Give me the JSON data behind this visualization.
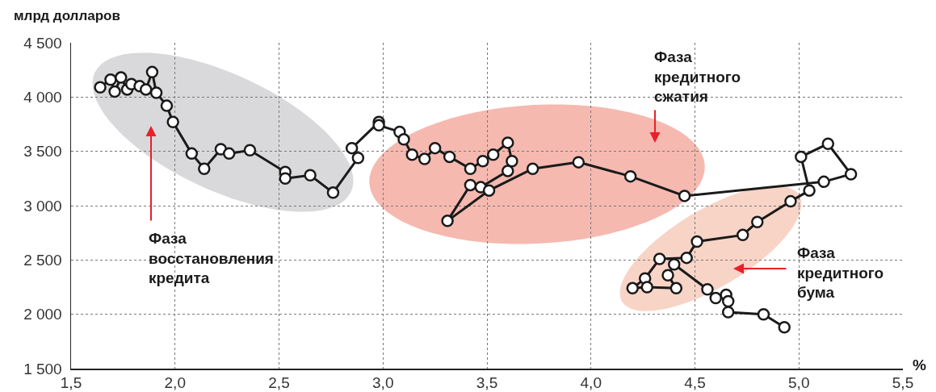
{
  "chart_data": {
    "type": "line",
    "ylabel": "млрд долларов",
    "xlabel": "%",
    "x": [
      1.64,
      1.69,
      1.71,
      1.74,
      1.77,
      1.79,
      1.83,
      1.86,
      1.89,
      1.91,
      1.96,
      1.99,
      2.08,
      2.14,
      2.22,
      2.26,
      2.36,
      2.53,
      2.53,
      2.65,
      2.76,
      2.88,
      2.85,
      2.98,
      2.98,
      3.08,
      3.1,
      3.14,
      3.2,
      3.25,
      3.32,
      3.42,
      3.48,
      3.53,
      3.6,
      3.62,
      3.6,
      3.47,
      3.42,
      3.31,
      3.51,
      3.72,
      3.94,
      4.19,
      4.45,
      5.12,
      5.25,
      5.14,
      5.01,
      5.05,
      4.96,
      4.8,
      4.73,
      4.51,
      4.46,
      4.33,
      4.26,
      4.2,
      4.27,
      4.41,
      4.37,
      4.4,
      4.56,
      4.6,
      4.65,
      4.66,
      4.66,
      4.83,
      4.93
    ],
    "series": [
      {
        "color": "#1a1a1a",
        "values": [
          4090,
          4160,
          4050,
          4180,
          4070,
          4120,
          4100,
          4070,
          4230,
          4040,
          3920,
          3770,
          3480,
          3340,
          3520,
          3480,
          3510,
          3310,
          3250,
          3280,
          3120,
          3440,
          3530,
          3770,
          3740,
          3680,
          3610,
          3470,
          3430,
          3530,
          3450,
          3340,
          3410,
          3470,
          3580,
          3410,
          3320,
          3170,
          3190,
          2860,
          3140,
          3340,
          3400,
          3270,
          3090,
          3220,
          3290,
          3570,
          3450,
          3140,
          3040,
          2850,
          2730,
          2670,
          2520,
          2510,
          2330,
          2240,
          2250,
          2240,
          2360,
          2460,
          2230,
          2150,
          2180,
          2120,
          2020,
          2000,
          1880
        ]
      }
    ],
    "xlim": [
      1.5,
      5.5
    ],
    "xticks": [
      {
        "value": 1.5,
        "label": "1,5"
      },
      {
        "value": 2,
        "label": "2,0"
      },
      {
        "value": 2.5,
        "label": "2,5"
      },
      {
        "value": 3,
        "label": "3,0"
      },
      {
        "value": 3.5,
        "label": "3,5"
      },
      {
        "value": 4,
        "label": "4,0"
      },
      {
        "value": 4.5,
        "label": "4,5"
      },
      {
        "value": 5,
        "label": "5,0"
      },
      {
        "value": 5.5,
        "label": "5,5"
      }
    ],
    "ylim": [
      1500,
      4500
    ],
    "yticks": [
      {
        "value": 1500,
        "label": "1 500"
      },
      {
        "value": 2000,
        "label": "2 000"
      },
      {
        "value": 2500,
        "label": "2 500"
      },
      {
        "value": 3000,
        "label": "3 000"
      },
      {
        "value": 3500,
        "label": "3 500"
      },
      {
        "value": 4000,
        "label": "4 000"
      },
      {
        "value": 4500,
        "label": "4 500"
      }
    ],
    "grid": true,
    "marker": "circle",
    "line_style": "solid",
    "annotations": [
      "Фаза\nвосстановления\nкредита",
      "Фаза\nкредитного\nсжатия",
      "Фаза\nкредитного\nбума"
    ]
  }
}
